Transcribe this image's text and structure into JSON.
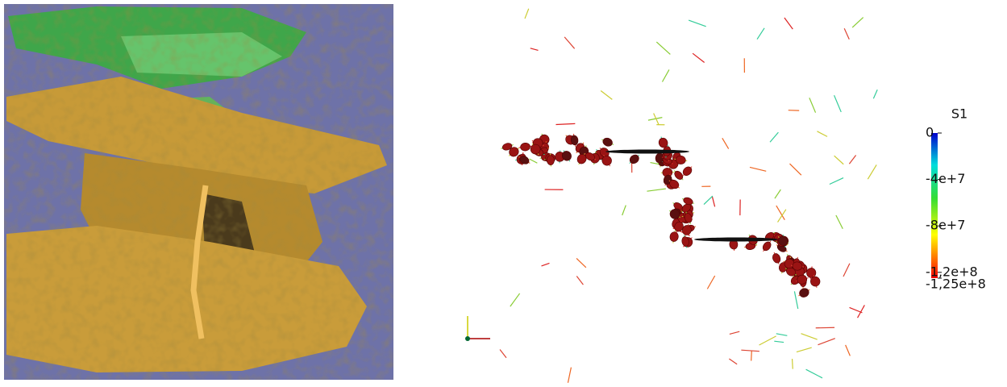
{
  "colorbar": {
    "title": "S1",
    "lim": [
      -125000000,
      0
    ],
    "ticks": [
      0,
      {
        "value": -40000000,
        "label": "-4e+7"
      },
      {
        "value": -80000000,
        "label": "-8e+7"
      },
      {
        "value": -120000000,
        "label": "-1,2e+8"
      },
      {
        "value": -125000000,
        "label": "-1,25e+8"
      }
    ]
  }
}
